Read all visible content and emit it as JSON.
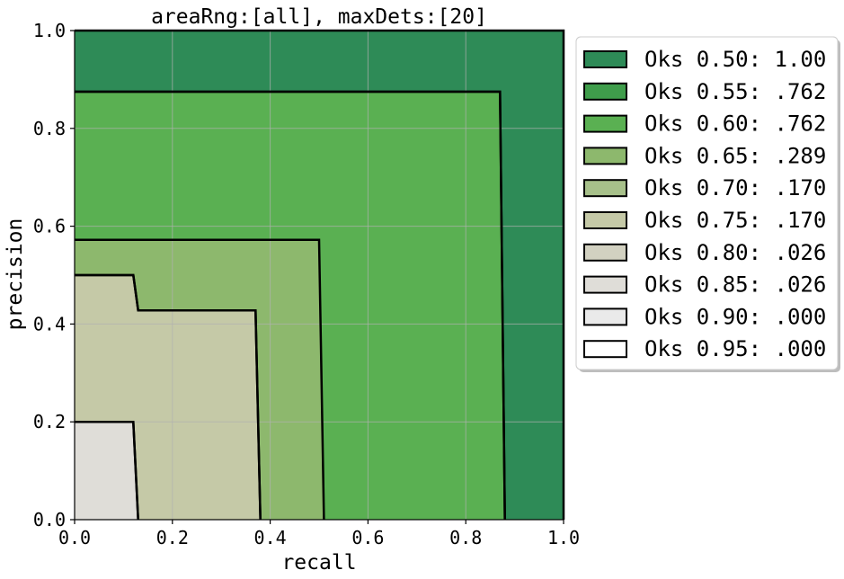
{
  "chart_data": {
    "type": "area",
    "title": "areaRng:[all], maxDets:[20]",
    "xlabel": "recall",
    "ylabel": "precision",
    "xlim": [
      0.0,
      1.0
    ],
    "ylim": [
      0.0,
      1.0
    ],
    "xticks": [
      "0.0",
      "0.2",
      "0.4",
      "0.6",
      "0.8",
      "1.0"
    ],
    "yticks": [
      "0.0",
      "0.2",
      "0.4",
      "0.6",
      "0.8",
      "1.0"
    ],
    "grid": true,
    "legend_position": "outside-right",
    "series": [
      {
        "name": "Oks 0.50: 1.00",
        "color": "#2e8b57",
        "points": [
          [
            0.0,
            1.0
          ],
          [
            1.0,
            1.0
          ],
          [
            1.0,
            0.0
          ]
        ]
      },
      {
        "name": "Oks 0.55: .762",
        "color": "#3f9d4b",
        "points": [
          [
            0.0,
            0.875
          ],
          [
            0.87,
            0.875
          ],
          [
            0.88,
            0.0
          ]
        ]
      },
      {
        "name": "Oks 0.60: .762",
        "color": "#5ab052",
        "points": [
          [
            0.0,
            0.875
          ],
          [
            0.87,
            0.875
          ],
          [
            0.88,
            0.0
          ]
        ]
      },
      {
        "name": "Oks 0.65: .289",
        "color": "#8db86d",
        "points": [
          [
            0.0,
            0.572
          ],
          [
            0.5,
            0.572
          ],
          [
            0.51,
            0.0
          ]
        ]
      },
      {
        "name": "Oks 0.70: .170",
        "color": "#a7c08a",
        "points": [
          [
            0.0,
            0.5
          ],
          [
            0.12,
            0.5
          ],
          [
            0.13,
            0.428
          ],
          [
            0.37,
            0.428
          ],
          [
            0.38,
            0.0
          ]
        ]
      },
      {
        "name": "Oks 0.75: .170",
        "color": "#c5c9a7",
        "points": [
          [
            0.0,
            0.5
          ],
          [
            0.12,
            0.5
          ],
          [
            0.13,
            0.428
          ],
          [
            0.37,
            0.428
          ],
          [
            0.38,
            0.0
          ]
        ]
      },
      {
        "name": "Oks 0.80: .026",
        "color": "#d2d1c1",
        "points": [
          [
            0.0,
            0.2
          ],
          [
            0.12,
            0.2
          ],
          [
            0.13,
            0.0
          ]
        ]
      },
      {
        "name": "Oks 0.85: .026",
        "color": "#dfddd8",
        "points": [
          [
            0.0,
            0.2
          ],
          [
            0.12,
            0.2
          ],
          [
            0.13,
            0.0
          ]
        ]
      },
      {
        "name": "Oks 0.90: .000",
        "color": "#eaeaea",
        "points": []
      },
      {
        "name": "Oks 0.95: .000",
        "color": "#ffffff",
        "points": []
      }
    ]
  }
}
